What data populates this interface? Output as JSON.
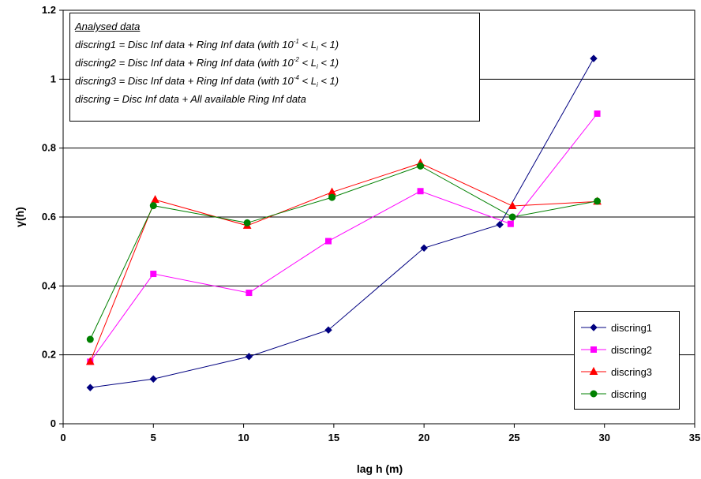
{
  "chart_data": {
    "type": "line",
    "xlabel": "lag h (m)",
    "ylabel": "γ(h)",
    "xlim": [
      0,
      35
    ],
    "ylim": [
      0,
      1.2
    ],
    "x_ticks": [
      "0",
      "5",
      "10",
      "15",
      "20",
      "25",
      "30",
      "35"
    ],
    "y_ticks": [
      "0",
      "0.2",
      "0.4",
      "0.6",
      "0.8",
      "1",
      "1.2"
    ],
    "grid": "horizontal",
    "legend_position": "bottom-right",
    "annotation": {
      "header": "Analysed data",
      "lines": [
        {
          "name": "discring1",
          "text": " = Disc Inf data + Ring Inf data (with 10",
          "exp": "-1",
          "mid": " < L",
          "sub": "i",
          "end": " < 1)"
        },
        {
          "name": "discring2",
          "text": " = Disc Inf data + Ring Inf data (with 10",
          "exp": "-2",
          "mid": " < L",
          "sub": "i",
          "end": " < 1)"
        },
        {
          "name": "discring3",
          "text": " = Disc Inf data + Ring Inf data (with 10",
          "exp": "-4",
          "mid": " < L",
          "sub": "i",
          "end": " < 1)"
        },
        {
          "name": "discring",
          "text": " = Disc Inf data + All available Ring Inf data"
        }
      ]
    },
    "series": [
      {
        "name": "discring1",
        "color": "#000080",
        "marker": "diamond",
        "x": [
          1.5,
          5.0,
          10.3,
          14.7,
          20.0,
          24.2,
          29.4
        ],
        "y": [
          0.105,
          0.13,
          0.195,
          0.272,
          0.51,
          0.578,
          1.06
        ]
      },
      {
        "name": "discring2",
        "color": "#ff00ff",
        "marker": "square",
        "x": [
          1.5,
          5.0,
          10.3,
          14.7,
          19.8,
          24.8,
          29.6
        ],
        "y": [
          0.18,
          0.435,
          0.38,
          0.53,
          0.675,
          0.58,
          0.9
        ]
      },
      {
        "name": "discring3",
        "color": "#ff0000",
        "marker": "triangle",
        "x": [
          1.5,
          5.1,
          10.2,
          14.9,
          19.8,
          24.9,
          29.6
        ],
        "y": [
          0.18,
          0.65,
          0.575,
          0.672,
          0.756,
          0.632,
          0.645
        ]
      },
      {
        "name": "discring",
        "color": "#008000",
        "marker": "circle",
        "x": [
          1.5,
          5.0,
          10.2,
          14.9,
          19.8,
          24.9,
          29.6
        ],
        "y": [
          0.245,
          0.633,
          0.583,
          0.657,
          0.748,
          0.6,
          0.646
        ]
      }
    ]
  }
}
